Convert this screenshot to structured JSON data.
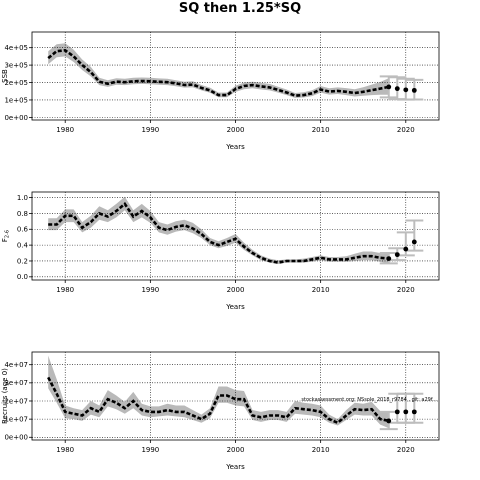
{
  "figure_title": "SQ then 1.25*SQ",
  "watermark": "stockassessment.org: NSsole_2018_r9784 , git: a29f...",
  "chart_data": [
    {
      "id": "ssb",
      "type": "line",
      "title": "",
      "xlabel": "Years",
      "ylabel": "SSB",
      "xlim": [
        1976.1,
        2023.9
      ],
      "ylim": [
        -15000,
        490000
      ],
      "xticks": [
        1980,
        1990,
        2000,
        2010,
        2020
      ],
      "yticks": [
        0,
        100000,
        200000,
        300000,
        400000
      ],
      "ytick_labels": [
        "0e+00",
        "1e+05",
        "2e+05",
        "3e+05",
        "4e+05"
      ],
      "grid": true,
      "x": [
        1978,
        1979,
        1980,
        1981,
        1982,
        1983,
        1984,
        1985,
        1986,
        1987,
        1988,
        1989,
        1990,
        1991,
        1992,
        1993,
        1994,
        1995,
        1996,
        1997,
        1998,
        1999,
        2000,
        2001,
        2002,
        2003,
        2004,
        2005,
        2006,
        2007,
        2008,
        2009,
        2010,
        2011,
        2012,
        2013,
        2014,
        2015,
        2016,
        2017,
        2018
      ],
      "estimate": [
        340000,
        380000,
        385000,
        350000,
        300000,
        260000,
        205000,
        193000,
        205000,
        202000,
        207000,
        209000,
        207000,
        204000,
        202000,
        195000,
        186000,
        188000,
        169000,
        155000,
        128000,
        128000,
        163000,
        180000,
        185000,
        178000,
        172000,
        158000,
        143000,
        125000,
        128000,
        138000,
        160000,
        148000,
        152000,
        147000,
        140000,
        147000,
        156000,
        165000,
        175000
      ],
      "lower": [
        305000,
        345000,
        350000,
        318000,
        272000,
        235000,
        185000,
        175000,
        187000,
        185000,
        190000,
        192000,
        190000,
        187000,
        185000,
        179000,
        171000,
        172000,
        155000,
        141000,
        116000,
        115000,
        146000,
        162000,
        167000,
        160000,
        155000,
        142000,
        128000,
        112000,
        114000,
        122000,
        142000,
        131000,
        134000,
        128000,
        120000,
        124000,
        128000,
        130000,
        130000
      ],
      "upper": [
        380000,
        420000,
        425000,
        388000,
        332000,
        290000,
        227000,
        213000,
        225000,
        222000,
        227000,
        229000,
        227000,
        224000,
        222000,
        213000,
        204000,
        207000,
        186000,
        171000,
        142000,
        143000,
        182000,
        200000,
        205000,
        198000,
        192000,
        176000,
        160000,
        140000,
        144000,
        156000,
        180000,
        167000,
        172000,
        168000,
        162000,
        173000,
        188000,
        203000,
        225000
      ],
      "forecast": {
        "x": [
          2018,
          2019,
          2020,
          2021
        ],
        "median": [
          175000,
          165000,
          158000,
          155000
        ],
        "low": [
          115000,
          105000,
          102000,
          103000
        ],
        "high": [
          235000,
          230000,
          222000,
          215000
        ]
      }
    },
    {
      "id": "fbar",
      "type": "line",
      "title": "",
      "xlabel": "Years",
      "ylabel": "F2-6",
      "ylabel_base": "F",
      "ylabel_sub": "2-6",
      "xlim": [
        1976.1,
        2023.9
      ],
      "ylim": [
        -0.04,
        1.07
      ],
      "xticks": [
        1980,
        1990,
        2000,
        2010,
        2020
      ],
      "yticks": [
        0,
        0.2,
        0.4,
        0.6,
        0.8,
        1.0
      ],
      "ytick_labels": [
        "0.0",
        "0.2",
        "0.4",
        "0.6",
        "0.8",
        "1.0"
      ],
      "grid": true,
      "x": [
        1978,
        1979,
        1980,
        1981,
        1982,
        1983,
        1984,
        1985,
        1986,
        1987,
        1988,
        1989,
        1990,
        1991,
        1992,
        1993,
        1994,
        1995,
        1996,
        1997,
        1998,
        1999,
        2000,
        2001,
        2002,
        2003,
        2004,
        2005,
        2006,
        2007,
        2008,
        2009,
        2010,
        2011,
        2012,
        2013,
        2014,
        2015,
        2016,
        2017,
        2018
      ],
      "estimate": [
        0.66,
        0.66,
        0.77,
        0.77,
        0.62,
        0.69,
        0.8,
        0.76,
        0.83,
        0.92,
        0.76,
        0.83,
        0.75,
        0.62,
        0.59,
        0.63,
        0.65,
        0.61,
        0.54,
        0.44,
        0.4,
        0.44,
        0.48,
        0.38,
        0.3,
        0.24,
        0.2,
        0.18,
        0.2,
        0.2,
        0.2,
        0.22,
        0.24,
        0.22,
        0.22,
        0.22,
        0.24,
        0.26,
        0.26,
        0.24,
        0.23
      ],
      "lower": [
        0.59,
        0.59,
        0.69,
        0.69,
        0.56,
        0.62,
        0.72,
        0.69,
        0.75,
        0.84,
        0.69,
        0.75,
        0.68,
        0.56,
        0.53,
        0.57,
        0.59,
        0.55,
        0.49,
        0.4,
        0.36,
        0.39,
        0.43,
        0.34,
        0.27,
        0.21,
        0.18,
        0.16,
        0.18,
        0.18,
        0.18,
        0.19,
        0.21,
        0.19,
        0.19,
        0.19,
        0.2,
        0.21,
        0.21,
        0.19,
        0.17
      ],
      "upper": [
        0.74,
        0.74,
        0.85,
        0.85,
        0.69,
        0.77,
        0.89,
        0.84,
        0.92,
        1.01,
        0.84,
        0.92,
        0.83,
        0.69,
        0.66,
        0.7,
        0.72,
        0.68,
        0.6,
        0.49,
        0.45,
        0.49,
        0.54,
        0.43,
        0.34,
        0.27,
        0.23,
        0.21,
        0.22,
        0.22,
        0.23,
        0.25,
        0.27,
        0.25,
        0.25,
        0.26,
        0.29,
        0.32,
        0.32,
        0.3,
        0.3
      ],
      "forecast": {
        "x": [
          2018,
          2019,
          2020,
          2021
        ],
        "median": [
          0.23,
          0.28,
          0.35,
          0.44
        ],
        "low": [
          0.17,
          0.21,
          0.27,
          0.33
        ],
        "high": [
          0.3,
          0.36,
          0.56,
          0.71
        ]
      }
    },
    {
      "id": "recruits",
      "type": "line",
      "title": "",
      "xlabel": "Years",
      "ylabel": "Recruits (age 0)",
      "xlim": [
        1976.1,
        2023.9
      ],
      "ylim": [
        -1500000,
        47000000
      ],
      "xticks": [
        1980,
        1990,
        2000,
        2010,
        2020
      ],
      "yticks": [
        0,
        10000000,
        20000000,
        30000000,
        40000000
      ],
      "ytick_labels": [
        "0e+00",
        "1e+07",
        "2e+07",
        "3e+07",
        "4e+07"
      ],
      "grid": true,
      "x": [
        1978,
        1979,
        1980,
        1981,
        1982,
        1983,
        1984,
        1985,
        1986,
        1987,
        1988,
        1989,
        1990,
        1991,
        1992,
        1993,
        1994,
        1995,
        1996,
        1997,
        1998,
        1999,
        2000,
        2001,
        2002,
        2003,
        2004,
        2005,
        2006,
        2007,
        2008,
        2009,
        2010,
        2011,
        2012,
        2013,
        2014,
        2015,
        2016,
        2017,
        2018
      ],
      "estimate": [
        33000000,
        24000000,
        14000000,
        13000000,
        12000000,
        16000000,
        14000000,
        21000000,
        19000000,
        16000000,
        20000000,
        15000000,
        14000000,
        14000000,
        15000000,
        14000000,
        14000000,
        12000000,
        10000000,
        13000000,
        23000000,
        23000000,
        21000000,
        21000000,
        12000000,
        11000000,
        12000000,
        12000000,
        11000000,
        16000000,
        15500000,
        15000000,
        14000000,
        10000000,
        8000000,
        12000000,
        15500000,
        15000000,
        15500000,
        10000000,
        9000000
      ],
      "lower": [
        27000000,
        19000000,
        10500000,
        10000000,
        9000000,
        12500000,
        11000000,
        17000000,
        15500000,
        13000000,
        16000000,
        12000000,
        11000000,
        11500000,
        12000000,
        11500000,
        11000000,
        9500000,
        8000000,
        10500000,
        19000000,
        19000000,
        17500000,
        17000000,
        9500000,
        8500000,
        9500000,
        9500000,
        8500000,
        13000000,
        12500000,
        12000000,
        11000000,
        8000000,
        6500000,
        9500000,
        12500000,
        12000000,
        12000000,
        7000000,
        5000000
      ],
      "upper": [
        45000000,
        32000000,
        17500000,
        16000000,
        15000000,
        20000000,
        17500000,
        26000000,
        23000000,
        19500000,
        25000000,
        18500000,
        17000000,
        17000000,
        18500000,
        17500000,
        17500000,
        15000000,
        12500000,
        16000000,
        28000000,
        28000000,
        26000000,
        25500000,
        15000000,
        14000000,
        15000000,
        15000000,
        14000000,
        20000000,
        19000000,
        18500000,
        17500000,
        12500000,
        10000000,
        15000000,
        19000000,
        18500000,
        19500000,
        14500000,
        14000000
      ],
      "forecast": {
        "x": [
          2018,
          2019,
          2020,
          2021
        ],
        "median": [
          9000000,
          14000000,
          14000000,
          14000000
        ],
        "low": [
          4500000,
          8000000,
          8000000,
          8000000
        ],
        "high": [
          14000000,
          24000000,
          24000000,
          24000000
        ]
      }
    }
  ]
}
